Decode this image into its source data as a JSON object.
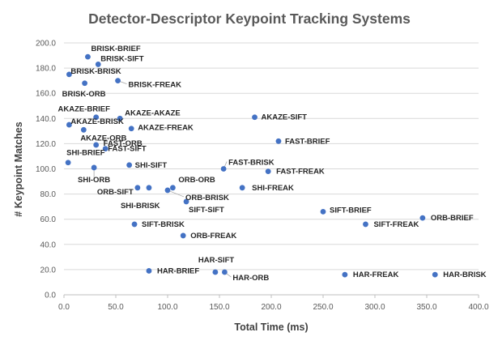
{
  "chart_data": {
    "type": "scatter",
    "title": "Detector-Descriptor  Keypoint Tracking Systems",
    "xlabel": "Total Time (ms)",
    "ylabel": "# Keypoint Matches",
    "xlim": [
      0,
      400
    ],
    "ylim": [
      0,
      200
    ],
    "x_ticks": [
      "0.0",
      "50.0",
      "100.0",
      "150.0",
      "200.0",
      "250.0",
      "300.0",
      "350.0",
      "400.0"
    ],
    "y_ticks": [
      "0.0",
      "20.0",
      "40.0",
      "60.0",
      "80.0",
      "100.0",
      "120.0",
      "140.0",
      "160.0",
      "180.0",
      "200.0"
    ],
    "grid": "horizontal",
    "marker_color": "#4472c4",
    "points": [
      {
        "label": "BRISK-BRIEF",
        "x": 23,
        "y": 189
      },
      {
        "label": "BRISK-SIFT",
        "x": 33,
        "y": 183
      },
      {
        "label": "BRISK-BRISK",
        "x": 5,
        "y": 175
      },
      {
        "label": "BRISK-ORB",
        "x": 20,
        "y": 168
      },
      {
        "label": "BRISK-FREAK",
        "x": 52,
        "y": 170
      },
      {
        "label": "AKAZE-BRIEF",
        "x": 31,
        "y": 141
      },
      {
        "label": "AKAZE-AKAZE",
        "x": 54,
        "y": 140
      },
      {
        "label": "AKAZE-BRISK",
        "x": 5,
        "y": 135
      },
      {
        "label": "AKAZE-FREAK",
        "x": 65,
        "y": 132
      },
      {
        "label": "AKAZE-ORB",
        "x": 19,
        "y": 131
      },
      {
        "label": "AKAZE-SIFT",
        "x": 184,
        "y": 141
      },
      {
        "label": "FAST-BRIEF",
        "x": 207,
        "y": 122
      },
      {
        "label": "FAST-ORB",
        "x": 31,
        "y": 119
      },
      {
        "label": "FAST-SIFT",
        "x": 40,
        "y": 116
      },
      {
        "label": "SHI-BRIEF",
        "x": 4,
        "y": 105
      },
      {
        "label": "SHI-SIFT",
        "x": 63,
        "y": 103
      },
      {
        "label": "SHI-ORB",
        "x": 29,
        "y": 101
      },
      {
        "label": "FAST-BRISK",
        "x": 154,
        "y": 100
      },
      {
        "label": "FAST-FREAK",
        "x": 197,
        "y": 98
      },
      {
        "label": "ORB-ORB",
        "x": 105,
        "y": 85
      },
      {
        "label": "ORB-SIFT",
        "x": 71,
        "y": 85
      },
      {
        "label": "SHI-BRISK",
        "x": 82,
        "y": 85
      },
      {
        "label": "ORB-BRISK",
        "x": 100,
        "y": 83
      },
      {
        "label": "SHI-FREAK",
        "x": 172,
        "y": 85
      },
      {
        "label": "SIFT-SIFT",
        "x": 118,
        "y": 74
      },
      {
        "label": "SIFT-BRIEF",
        "x": 250,
        "y": 66
      },
      {
        "label": "SIFT-FREAK",
        "x": 291,
        "y": 56
      },
      {
        "label": "ORB-BRIEF",
        "x": 346,
        "y": 61
      },
      {
        "label": "SIFT-BRISK",
        "x": 68,
        "y": 56
      },
      {
        "label": "ORB-FREAK",
        "x": 115,
        "y": 47
      },
      {
        "label": "HAR-SIFT",
        "x": 146,
        "y": 18
      },
      {
        "label": "HAR-BRIEF",
        "x": 82,
        "y": 19
      },
      {
        "label": "HAR-ORB",
        "x": 155,
        "y": 18
      },
      {
        "label": "HAR-FREAK",
        "x": 271,
        "y": 16
      },
      {
        "label": "HAR-BRISK",
        "x": 358,
        "y": 16
      }
    ]
  }
}
